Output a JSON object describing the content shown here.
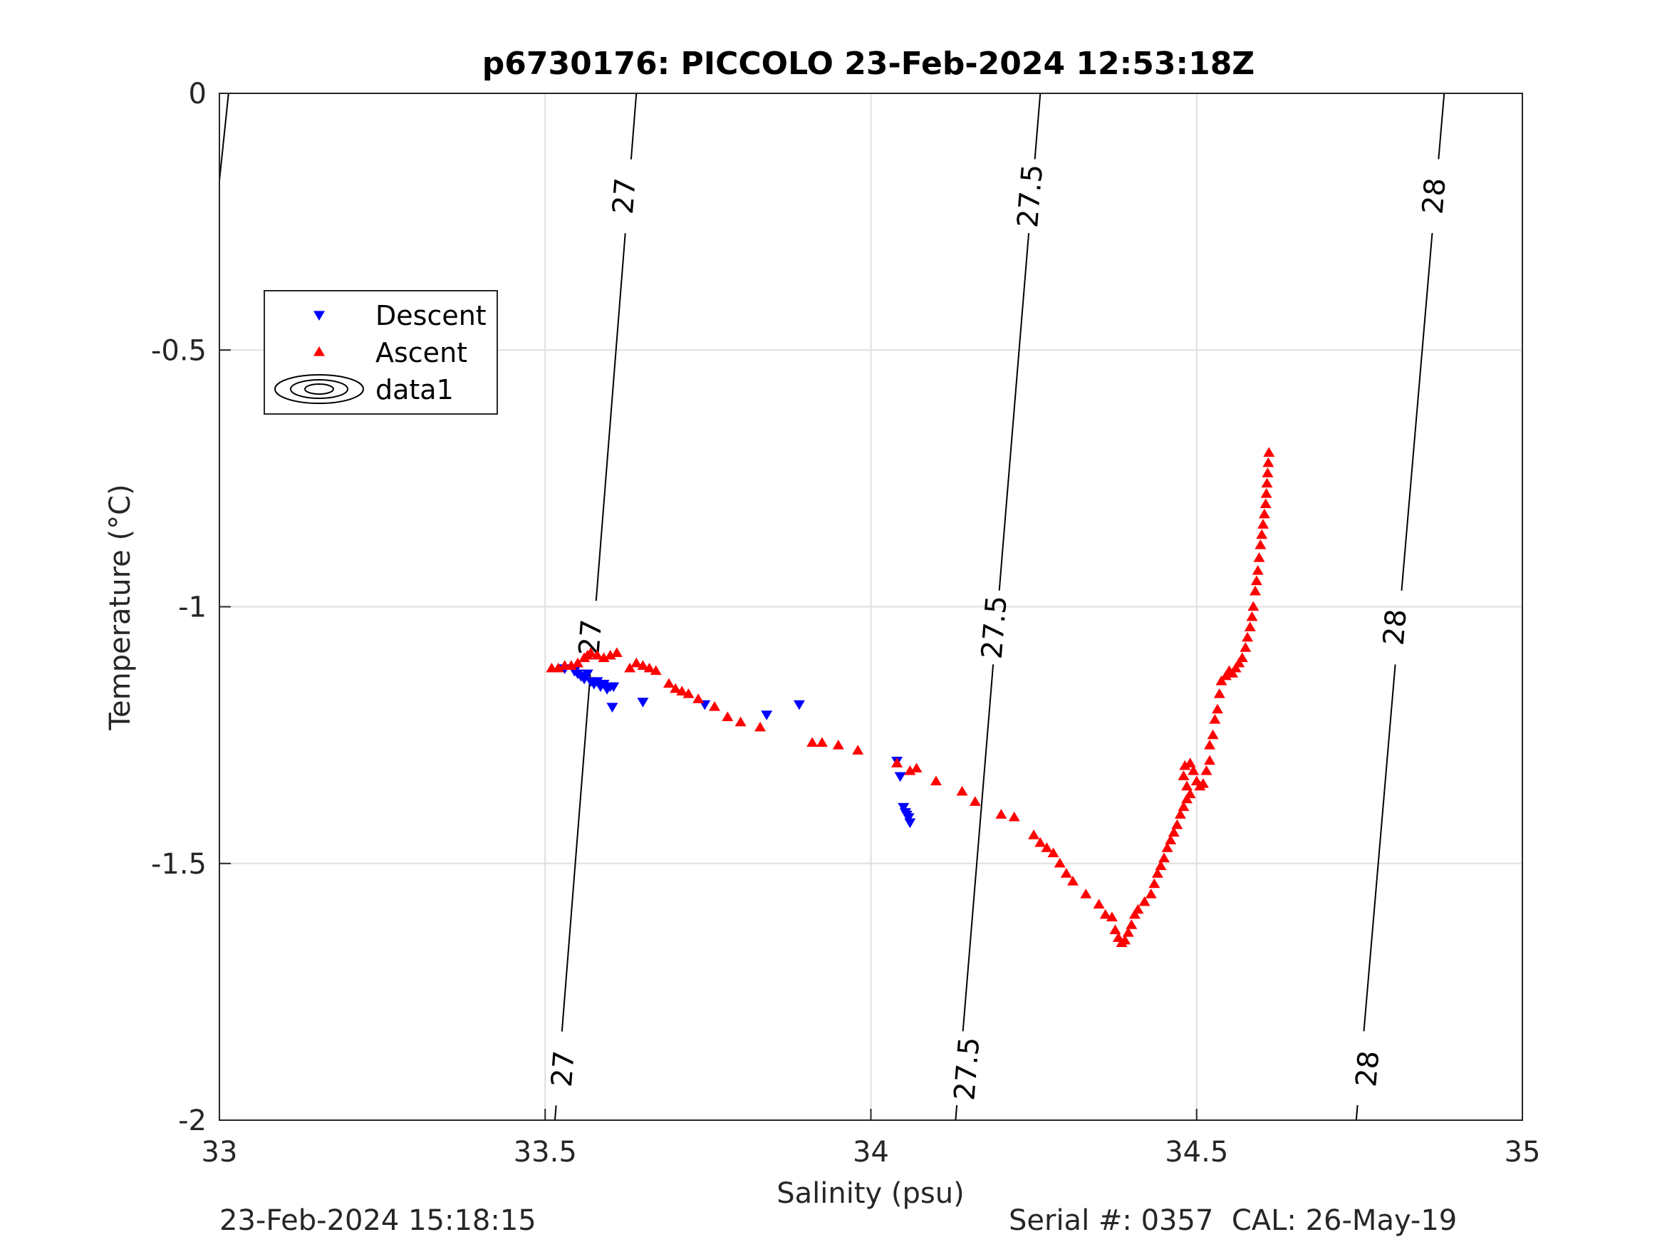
{
  "chart_data": {
    "type": "scatter",
    "title": "p6730176: PICCOLO 23-Feb-2024 12:53:18Z",
    "xlabel": "Salinity (psu)",
    "ylabel": "Temperature (°C)",
    "xlim": [
      33,
      35
    ],
    "ylim": [
      -2,
      0
    ],
    "xticks": [
      33,
      33.5,
      34,
      34.5,
      35
    ],
    "xtick_labels": [
      "33",
      "33.5",
      "34",
      "34.5",
      "35"
    ],
    "yticks": [
      0,
      -0.5,
      -1,
      -1.5,
      -2
    ],
    "ytick_labels": [
      "0",
      "-0.5",
      "-1",
      "-1.5",
      "-2"
    ],
    "grid": true,
    "legend": {
      "location": "upper-left",
      "entries": [
        {
          "label": "Descent",
          "marker": "triangle-down",
          "color": "#0000ff"
        },
        {
          "label": "Ascent",
          "marker": "triangle-up",
          "color": "#ff0000"
        },
        {
          "label": "data1",
          "marker": "contour",
          "color": "#000000"
        }
      ]
    },
    "series": [
      {
        "name": "Descent",
        "marker": "triangle-down",
        "color": "#0000ff",
        "points": [
          [
            33.53,
            -1.12
          ],
          [
            33.545,
            -1.125
          ],
          [
            33.55,
            -1.13
          ],
          [
            33.555,
            -1.135
          ],
          [
            33.56,
            -1.14
          ],
          [
            33.565,
            -1.13
          ],
          [
            33.57,
            -1.145
          ],
          [
            33.575,
            -1.15
          ],
          [
            33.58,
            -1.145
          ],
          [
            33.585,
            -1.155
          ],
          [
            33.59,
            -1.15
          ],
          [
            33.595,
            -1.16
          ],
          [
            33.6,
            -1.155
          ],
          [
            33.605,
            -1.155
          ],
          [
            33.603,
            -1.195
          ],
          [
            33.65,
            -1.185
          ],
          [
            33.745,
            -1.19
          ],
          [
            33.84,
            -1.21
          ],
          [
            33.89,
            -1.19
          ],
          [
            34.04,
            -1.3
          ],
          [
            34.045,
            -1.33
          ],
          [
            34.05,
            -1.39
          ],
          [
            34.053,
            -1.4
          ],
          [
            34.055,
            -1.405
          ],
          [
            34.058,
            -1.41
          ],
          [
            34.06,
            -1.42
          ]
        ]
      },
      {
        "name": "Ascent",
        "marker": "triangle-up",
        "color": "#ff0000",
        "points": [
          [
            33.51,
            -1.12
          ],
          [
            33.52,
            -1.12
          ],
          [
            33.53,
            -1.115
          ],
          [
            33.54,
            -1.115
          ],
          [
            33.55,
            -1.11
          ],
          [
            33.56,
            -1.1
          ],
          [
            33.565,
            -1.095
          ],
          [
            33.57,
            -1.09
          ],
          [
            33.58,
            -1.095
          ],
          [
            33.59,
            -1.1
          ],
          [
            33.6,
            -1.095
          ],
          [
            33.61,
            -1.09
          ],
          [
            33.63,
            -1.12
          ],
          [
            33.64,
            -1.11
          ],
          [
            33.65,
            -1.115
          ],
          [
            33.66,
            -1.12
          ],
          [
            33.67,
            -1.125
          ],
          [
            33.69,
            -1.15
          ],
          [
            33.7,
            -1.16
          ],
          [
            33.71,
            -1.165
          ],
          [
            33.72,
            -1.17
          ],
          [
            33.735,
            -1.18
          ],
          [
            33.76,
            -1.195
          ],
          [
            33.78,
            -1.215
          ],
          [
            33.8,
            -1.225
          ],
          [
            33.83,
            -1.235
          ],
          [
            33.91,
            -1.265
          ],
          [
            33.925,
            -1.265
          ],
          [
            33.95,
            -1.27
          ],
          [
            33.98,
            -1.28
          ],
          [
            34.04,
            -1.305
          ],
          [
            34.06,
            -1.32
          ],
          [
            34.07,
            -1.315
          ],
          [
            34.1,
            -1.34
          ],
          [
            34.14,
            -1.36
          ],
          [
            34.16,
            -1.38
          ],
          [
            34.2,
            -1.405
          ],
          [
            34.22,
            -1.41
          ],
          [
            34.25,
            -1.445
          ],
          [
            34.26,
            -1.46
          ],
          [
            34.27,
            -1.47
          ],
          [
            34.28,
            -1.48
          ],
          [
            34.29,
            -1.5
          ],
          [
            34.3,
            -1.52
          ],
          [
            34.31,
            -1.535
          ],
          [
            34.33,
            -1.56
          ],
          [
            34.35,
            -1.58
          ],
          [
            34.36,
            -1.6
          ],
          [
            34.37,
            -1.605
          ],
          [
            34.375,
            -1.63
          ],
          [
            34.38,
            -1.645
          ],
          [
            34.385,
            -1.655
          ],
          [
            34.39,
            -1.65
          ],
          [
            34.395,
            -1.635
          ],
          [
            34.4,
            -1.62
          ],
          [
            34.405,
            -1.6
          ],
          [
            34.41,
            -1.59
          ],
          [
            34.42,
            -1.575
          ],
          [
            34.43,
            -1.56
          ],
          [
            34.435,
            -1.54
          ],
          [
            34.44,
            -1.52
          ],
          [
            34.445,
            -1.505
          ],
          [
            34.45,
            -1.49
          ],
          [
            34.455,
            -1.47
          ],
          [
            34.46,
            -1.455
          ],
          [
            34.465,
            -1.44
          ],
          [
            34.47,
            -1.425
          ],
          [
            34.475,
            -1.405
          ],
          [
            34.48,
            -1.39
          ],
          [
            34.485,
            -1.375
          ],
          [
            34.49,
            -1.365
          ],
          [
            34.485,
            -1.35
          ],
          [
            34.48,
            -1.33
          ],
          [
            34.482,
            -1.31
          ],
          [
            34.49,
            -1.305
          ],
          [
            34.495,
            -1.32
          ],
          [
            34.5,
            -1.34
          ],
          [
            34.505,
            -1.35
          ],
          [
            34.51,
            -1.345
          ],
          [
            34.515,
            -1.32
          ],
          [
            34.52,
            -1.3
          ],
          [
            34.52,
            -1.27
          ],
          [
            34.525,
            -1.25
          ],
          [
            34.528,
            -1.22
          ],
          [
            34.532,
            -1.2
          ],
          [
            34.535,
            -1.17
          ],
          [
            34.538,
            -1.145
          ],
          [
            34.545,
            -1.135
          ],
          [
            34.55,
            -1.125
          ],
          [
            34.555,
            -1.13
          ],
          [
            34.56,
            -1.12
          ],
          [
            34.565,
            -1.11
          ],
          [
            34.57,
            -1.1
          ],
          [
            34.575,
            -1.08
          ],
          [
            34.578,
            -1.06
          ],
          [
            34.582,
            -1.04
          ],
          [
            34.585,
            -1.02
          ],
          [
            34.587,
            -1.0
          ],
          [
            34.59,
            -0.97
          ],
          [
            34.592,
            -0.95
          ],
          [
            34.594,
            -0.93
          ],
          [
            34.596,
            -0.905
          ],
          [
            34.598,
            -0.88
          ],
          [
            34.6,
            -0.86
          ],
          [
            34.602,
            -0.84
          ],
          [
            34.604,
            -0.82
          ],
          [
            34.606,
            -0.8
          ],
          [
            34.607,
            -0.78
          ],
          [
            34.608,
            -0.76
          ],
          [
            34.609,
            -0.74
          ],
          [
            34.61,
            -0.72
          ],
          [
            34.611,
            -0.7
          ]
        ]
      }
    ],
    "contours": [
      {
        "level": "27",
        "line": [
          [
            33.64,
            0
          ],
          [
            33.515,
            -2
          ]
        ],
        "labels": [
          [
            33.622,
            -0.2
          ],
          [
            33.57,
            -1.06
          ],
          [
            33.528,
            -1.9
          ]
        ]
      },
      {
        "level": "27.5",
        "line": [
          [
            34.26,
            0
          ],
          [
            34.13,
            -2
          ]
        ],
        "labels": [
          [
            34.245,
            -0.2
          ],
          [
            34.19,
            -1.04
          ],
          [
            34.148,
            -1.9
          ]
        ]
      },
      {
        "level": "28",
        "line": [
          [
            34.88,
            0
          ],
          [
            34.745,
            -2
          ]
        ],
        "labels": [
          [
            34.865,
            -0.2
          ],
          [
            34.805,
            -1.04
          ],
          [
            34.763,
            -1.9
          ]
        ]
      }
    ],
    "edge_contour_line": [
      [
        33.014,
        0
      ],
      [
        33.0,
        -0.17
      ]
    ]
  },
  "footer": {
    "left": "23-Feb-2024 15:18:15",
    "right": "Serial #: 0357  CAL: 26-May-19"
  }
}
